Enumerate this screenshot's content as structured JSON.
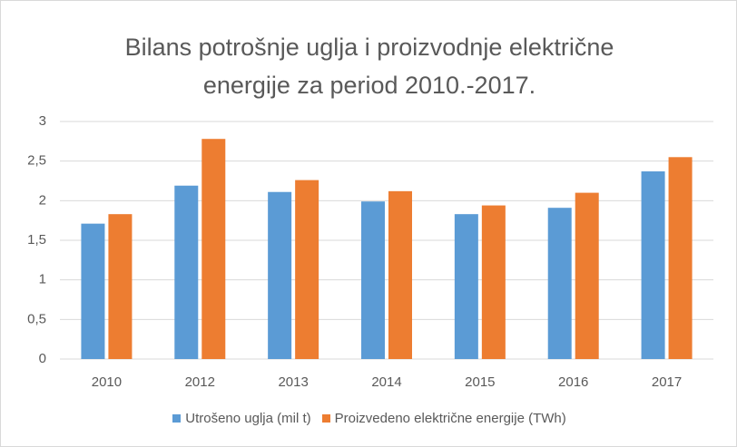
{
  "chart_data": {
    "type": "bar",
    "title": "Bilans potrošnje uglja i proizvodnje električne energije za period 2010.-2017.",
    "categories": [
      "2010",
      "2012",
      "2013",
      "2014",
      "2015",
      "2016",
      "2017"
    ],
    "series": [
      {
        "name": "Utrošeno uglja (mil t)",
        "color": "#5b9bd5",
        "values": [
          1.71,
          2.19,
          2.11,
          1.99,
          1.83,
          1.91,
          2.37
        ]
      },
      {
        "name": "Proizvedeno električne energije (TWh)",
        "color": "#ed7d31",
        "values": [
          1.83,
          2.78,
          2.26,
          2.12,
          1.94,
          2.1,
          2.55
        ]
      }
    ],
    "ylim": [
      0,
      3
    ],
    "yticks": [
      0,
      {
        "value": 0.5,
        "label": "0,5"
      },
      1,
      {
        "value": 1.5,
        "label": "1,5"
      },
      2,
      {
        "value": 2.5,
        "label": "2,5"
      },
      3
    ],
    "grid": true,
    "legend": "bottom"
  }
}
